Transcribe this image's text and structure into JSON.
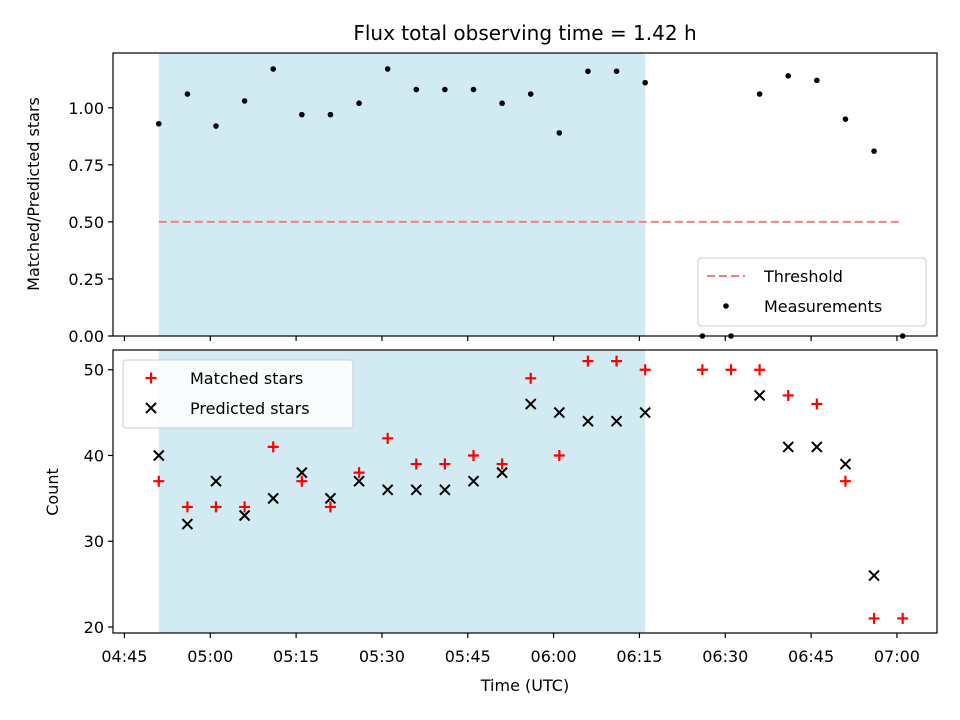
{
  "chart_data": {
    "title": "Flux total observing time = 1.42 h",
    "xlabel": "Time (UTC)",
    "xlim": [
      "04:43",
      "07:07"
    ],
    "x_ticks": [
      "04:45",
      "05:00",
      "05:15",
      "05:30",
      "05:45",
      "06:00",
      "06:15",
      "06:30",
      "06:45",
      "07:00"
    ],
    "shaded_span": {
      "start": "04:51",
      "end": "06:16",
      "color": "#add8e6"
    },
    "panels": [
      {
        "type": "scatter",
        "ylabel": "Matched/Predicted stars",
        "ylim": [
          0,
          1.24
        ],
        "y_ticks": [
          "0.00",
          "0.25",
          "0.50",
          "0.75",
          "1.00"
        ],
        "legend_position": "lower-right",
        "series": [
          {
            "name": "Threshold",
            "kind": "hline",
            "y": 0.5,
            "x_start": "04:51",
            "x_end": "07:01",
            "color": "#f08080",
            "linestyle": "dashed"
          },
          {
            "name": "Measurements",
            "kind": "dot",
            "color": "#000000",
            "x": [
              "04:51",
              "04:56",
              "05:01",
              "05:06",
              "05:11",
              "05:16",
              "05:21",
              "05:26",
              "05:31",
              "05:36",
              "05:41",
              "05:46",
              "05:51",
              "05:56",
              "06:01",
              "06:06",
              "06:11",
              "06:16",
              "06:26",
              "06:31",
              "06:36",
              "06:41",
              "06:46",
              "06:51",
              "06:56",
              "07:01"
            ],
            "y": [
              0.93,
              1.06,
              0.92,
              1.03,
              1.17,
              0.97,
              0.97,
              1.02,
              1.17,
              1.08,
              1.08,
              1.08,
              1.02,
              1.06,
              0.89,
              1.16,
              1.16,
              1.11,
              0.0,
              0.0,
              1.06,
              1.14,
              1.12,
              0.95,
              0.81,
              0.0
            ]
          }
        ]
      },
      {
        "type": "scatter",
        "ylabel": "Count",
        "ylim": [
          19.3,
          52.3
        ],
        "y_ticks": [
          "20",
          "30",
          "40",
          "50"
        ],
        "legend_position": "upper-left",
        "series": [
          {
            "name": "Matched stars",
            "marker": "+",
            "color": "#ff0000",
            "x": [
              "04:51",
              "04:56",
              "05:01",
              "05:06",
              "05:11",
              "05:16",
              "05:21",
              "05:26",
              "05:31",
              "05:36",
              "05:41",
              "05:46",
              "05:51",
              "05:56",
              "06:01",
              "06:06",
              "06:11",
              "06:16",
              "06:26",
              "06:31",
              "06:36",
              "06:41",
              "06:46",
              "06:51",
              "06:56",
              "07:01"
            ],
            "y": [
              37,
              34,
              34,
              34,
              41,
              37,
              34,
              38,
              42,
              39,
              39,
              40,
              39,
              49,
              40,
              51,
              51,
              50,
              50,
              50,
              50,
              47,
              46,
              37,
              21,
              21
            ]
          },
          {
            "name": "Predicted stars",
            "marker": "x",
            "color": "#000000",
            "x": [
              "04:51",
              "04:56",
              "05:01",
              "05:06",
              "05:11",
              "05:16",
              "05:21",
              "05:26",
              "05:31",
              "05:36",
              "05:41",
              "05:46",
              "05:51",
              "05:56",
              "06:01",
              "06:06",
              "06:11",
              "06:16",
              "06:36",
              "06:41",
              "06:46",
              "06:51",
              "06:56"
            ],
            "y": [
              40,
              32,
              37,
              33,
              35,
              38,
              35,
              37,
              36,
              36,
              36,
              37,
              38,
              46,
              45,
              44,
              44,
              45,
              47,
              41,
              41,
              39,
              26
            ]
          }
        ]
      }
    ]
  }
}
